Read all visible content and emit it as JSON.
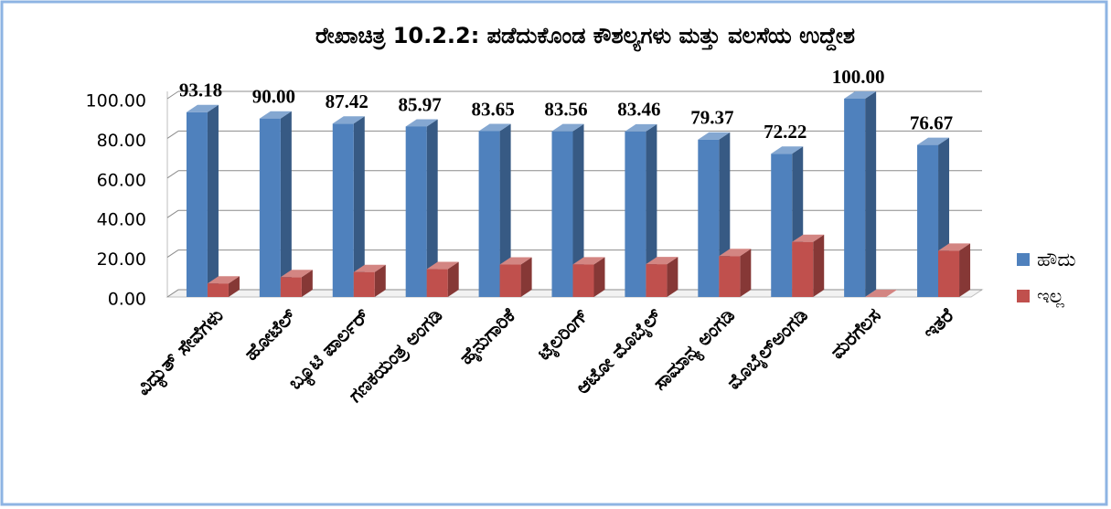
{
  "chart_data": {
    "type": "bar3d",
    "title": "ರೇಖಾಚಿತ್ರ 10.2.2: ಪಡೆದುಕೊಂಡ ಕೌಶಲ್ಯಗಳು ಮತ್ತು ವಲಸೆಯ ಉದ್ದೇಶ",
    "categories": [
      "ವಿದ್ಯುತ್ ಸೇವೆಗಳು",
      "ಹೋಟೆಲ್",
      "ಬ್ಯೂಟಿ ಪಾರ್ಲರ್",
      "ಗಣಕಯಂತ್ರ ಅಂಗಡಿ",
      "ಹೈನುಗಾರಿಕೆ",
      "ಟೈಲರಿಂಗ್",
      "ಆಟೋ ಮೊಬೈಲ್",
      "ಸಾಮಾನ್ಯ ಅಂಗಡಿ",
      "ಮೊಬೈಲ್ಅಂಗಡಿ",
      "ಮರಗೆಲಸ",
      "ಇತರೆ"
    ],
    "series": [
      {
        "name": "ಹೌದು",
        "color": "#4f81bd",
        "values": [
          93.18,
          90,
          87.42,
          85.97,
          83.65,
          83.56,
          83.46,
          79.37,
          72.22,
          100,
          76.67
        ],
        "value_labels": [
          "93.18",
          "90.00",
          "87.42",
          "85.97",
          "83.65",
          "83.56",
          "83.46",
          "79.37",
          "72.22",
          "100.00",
          "76.67"
        ]
      },
      {
        "name": "ಇಲ್ಲ",
        "color": "#c0504d",
        "values": [
          6.82,
          10,
          12.58,
          14.03,
          16.35,
          16.44,
          16.54,
          20.63,
          27.78,
          0,
          23.33
        ]
      }
    ],
    "ylim": [
      0,
      100
    ],
    "yticks": [
      {
        "value": 0,
        "label": "0.00"
      },
      {
        "value": 20,
        "label": "20.00"
      },
      {
        "value": 40,
        "label": "40.00"
      },
      {
        "value": 60,
        "label": "60.00"
      },
      {
        "value": 80,
        "label": "80.00"
      },
      {
        "value": 100,
        "label": "100.00"
      }
    ],
    "grid": true,
    "legend": "right"
  }
}
